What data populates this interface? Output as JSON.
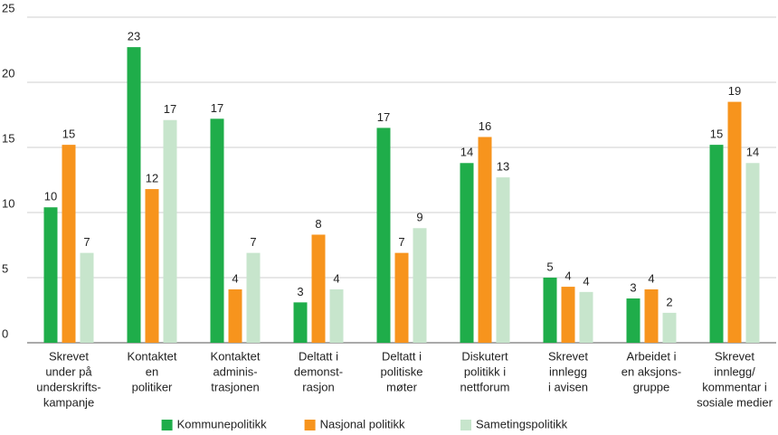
{
  "chart_data": {
    "type": "bar",
    "categories": [
      [
        "Skrevet",
        "under på",
        "underskrifts-",
        "kampanje"
      ],
      [
        "Kontaktet",
        "en",
        "politiker"
      ],
      [
        "Kontaktet",
        "adminis-",
        "trasjonen"
      ],
      [
        "Deltatt i",
        "demonst-",
        "rasjon"
      ],
      [
        "Deltatt i",
        "politiske",
        "møter"
      ],
      [
        "Diskutert",
        "politikk i",
        "nettforum"
      ],
      [
        "Skrevet",
        "innlegg",
        "i avisen"
      ],
      [
        "Arbeidet i",
        "en aksjons-",
        "gruppe"
      ],
      [
        "Skrevet",
        "innlegg/",
        "kommentar i",
        "sosiale medier"
      ]
    ],
    "series": [
      {
        "name": "Kommunepolitikk",
        "color": "#1fad4a",
        "values": [
          10.4,
          22.7,
          17.2,
          3.1,
          16.5,
          13.8,
          5.0,
          3.4,
          15.2
        ],
        "value_labels": [
          "10",
          "23",
          "17",
          "3",
          "17",
          "14",
          "5",
          "3",
          "15"
        ]
      },
      {
        "name": "Nasjonal politikk",
        "color": "#f7941d",
        "values": [
          15.2,
          11.8,
          4.1,
          8.3,
          6.9,
          15.8,
          4.3,
          4.1,
          18.5
        ],
        "value_labels": [
          "15",
          "12",
          "4",
          "8",
          "7",
          "16",
          "4",
          "4",
          "19"
        ]
      },
      {
        "name": "Sametingspolitikk",
        "color": "#c7e5cc",
        "values": [
          6.9,
          17.1,
          6.9,
          4.1,
          8.8,
          12.7,
          3.9,
          2.3,
          13.8
        ],
        "value_labels": [
          "7",
          "17",
          "7",
          "4",
          "9",
          "13",
          "4",
          "2",
          "14"
        ]
      }
    ],
    "ylim": [
      0,
      25
    ],
    "yticks": [
      0,
      5,
      10,
      15,
      20,
      25
    ],
    "grid": true,
    "legend": "bottom"
  }
}
